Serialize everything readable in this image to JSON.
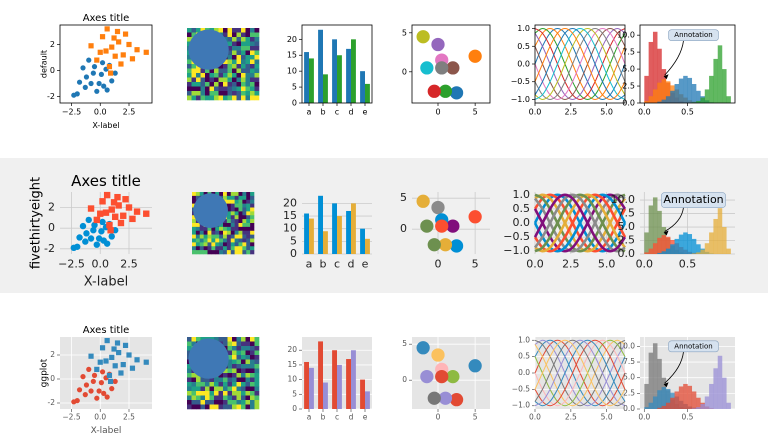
{
  "styles": [
    {
      "name": "default",
      "background": "#ffffff",
      "axes_background": "#ffffff",
      "grid": false,
      "spines": true,
      "ticks": true,
      "text_color": "#000000",
      "colors": [
        "#1f77b4",
        "#ff7f0e",
        "#2ca02c",
        "#d62728",
        "#9467bd",
        "#8c564b",
        "#e377c2",
        "#7f7f7f",
        "#bcbd22",
        "#17becf"
      ]
    },
    {
      "name": "fivethirtyeight",
      "background": "#f0f0f0",
      "axes_background": "#f0f0f0",
      "grid": true,
      "grid_color": "#cbcbcb",
      "spines": false,
      "ticks": false,
      "text_color": "#222222",
      "colors": [
        "#008fd5",
        "#fc4f30",
        "#e5ae38",
        "#6d904f",
        "#8b8b8b",
        "#810f7c"
      ]
    },
    {
      "name": "ggplot",
      "background": "#ffffff",
      "axes_background": "#e5e5e5",
      "grid": true,
      "grid_color": "#ffffff",
      "spines": false,
      "ticks": true,
      "text_color": "#555555",
      "colors": [
        "#e24a33",
        "#348abd",
        "#988ed5",
        "#777777",
        "#fbc15e",
        "#8eba42",
        "#ffb5b8"
      ]
    }
  ],
  "chart_data": [
    {
      "type": "scatter",
      "title": "Axes title",
      "xlabel": "X-label",
      "xlim": [
        -3.5,
        4.5
      ],
      "ylim": [
        -2.5,
        3.5
      ],
      "xticks": [
        {
          "value": -2.5,
          "label": "−2.5"
        },
        {
          "value": 0,
          "label": "0.0"
        },
        {
          "value": 2.5,
          "label": "2.5"
        }
      ],
      "yticks": [
        -2,
        0,
        2
      ],
      "series": [
        {
          "marker": "circle",
          "x": [
            -1.2,
            -0.5,
            0.3,
            -2,
            -0.8,
            0.5,
            -1.5,
            0.1,
            -0.3,
            1,
            -1,
            0.6,
            -1.8,
            0.2,
            -0.6,
            -0.1,
            0.8,
            -1.3,
            1.3,
            -2.3
          ],
          "values": [
            -0.5,
            0.3,
            -1.2,
            -1.8,
            -1,
            0.1,
            0.2,
            -0.3,
            -1.6,
            -0.8,
            0.8,
            -1.5,
            -0.9,
            0.6,
            -0.2,
            -1,
            0.4,
            -1.3,
            -0.2,
            -1.9
          ]
        },
        {
          "marker": "square",
          "x": [
            0.5,
            1.2,
            -0.3,
            2,
            1.5,
            0.8,
            2.5,
            0.2,
            1,
            3.2,
            1.8,
            -0.8,
            0.6,
            2.2,
            1.3,
            0,
            2.8,
            1.6,
            0.9,
            4
          ],
          "values": [
            1.5,
            2.5,
            0.8,
            1.2,
            3,
            0.3,
            2,
            2.6,
            1.8,
            1.6,
            0.5,
            1.9,
            3.2,
            2.8,
            1.1,
            1.4,
            0.9,
            2.2,
            -0.2,
            1.4
          ]
        }
      ]
    },
    {
      "type": "image"
    },
    {
      "type": "bar",
      "categories": [
        "a",
        "b",
        "c",
        "d",
        "e"
      ],
      "ylim": [
        0,
        24.5
      ],
      "yticks": [
        0,
        5,
        10,
        15,
        20
      ],
      "series": [
        {
          "values": [
            16,
            23,
            20,
            17,
            10
          ]
        },
        {
          "values": [
            14,
            9,
            15,
            20,
            6
          ]
        }
      ]
    },
    {
      "type": "circles",
      "xlim": [
        -3.5,
        7
      ],
      "ylim": [
        -4,
        6
      ],
      "xticks": [
        0,
        5
      ],
      "yticks": [
        0,
        5
      ],
      "x": [
        2.5,
        5,
        1,
        -0.5,
        0,
        2,
        0.5,
        0.5,
        -2,
        -1.5
      ],
      "values": [
        -2.7,
        2,
        -2.5,
        -2.5,
        3.5,
        0.5,
        1.5,
        0.5,
        4.5,
        0.5
      ]
    },
    {
      "type": "line",
      "xlim": [
        0,
        6.28
      ],
      "ylim": [
        -1.1,
        1.1
      ],
      "xticks": [
        {
          "value": 0,
          "label": "0.0"
        },
        {
          "value": 2.5,
          "label": "2.5"
        },
        {
          "value": 5,
          "label": "5.0"
        }
      ],
      "yticks": [
        {
          "value": -1,
          "label": "−1.0"
        },
        {
          "value": -0.5,
          "label": "−0.5"
        },
        {
          "value": 0,
          "label": "0.0"
        },
        {
          "value": 0.5,
          "label": "0.5"
        },
        {
          "value": 1,
          "label": "1.0"
        }
      ],
      "x": [
        0,
        0.52,
        1.05,
        1.57,
        2.09,
        2.62,
        3.14,
        3.67,
        4.19,
        4.71,
        5.24,
        5.76,
        6.28
      ],
      "series": [
        {
          "values": [
            0,
            0.5,
            0.87,
            1,
            0.87,
            0.5,
            0,
            -0.5,
            -0.87,
            -1,
            -0.87,
            -0.5,
            0
          ]
        },
        {
          "values": [
            0.5,
            0.87,
            1,
            0.87,
            0.5,
            0,
            -0.5,
            -0.87,
            -1,
            -0.87,
            -0.5,
            0,
            0.5
          ]
        },
        {
          "values": [
            0.87,
            1,
            0.87,
            0.5,
            0,
            -0.5,
            -0.87,
            -1,
            -0.87,
            -0.5,
            0,
            0.5,
            0.87
          ]
        },
        {
          "values": [
            1,
            0.87,
            0.5,
            0,
            -0.5,
            -0.87,
            -1,
            -0.87,
            -0.5,
            0,
            0.5,
            0.87,
            1
          ]
        },
        {
          "values": [
            0.87,
            0.5,
            0,
            -0.5,
            -0.87,
            -1,
            -0.87,
            -0.5,
            0,
            0.5,
            0.87,
            1,
            0.87
          ]
        },
        {
          "values": [
            0.5,
            0,
            -0.5,
            -0.87,
            -1,
            -0.87,
            -0.5,
            0,
            0.5,
            0.87,
            1,
            0.87,
            0.5
          ]
        },
        {
          "values": [
            0,
            -0.5,
            -0.87,
            -1,
            -0.87,
            -0.5,
            0,
            0.5,
            0.87,
            1,
            0.87,
            0.5,
            0
          ]
        },
        {
          "values": [
            -0.5,
            -0.87,
            -1,
            -0.87,
            -0.5,
            0,
            0.5,
            0.87,
            1,
            0.87,
            0.5,
            0,
            -0.5
          ]
        },
        {
          "values": [
            -0.87,
            -1,
            -0.87,
            -0.5,
            0,
            0.5,
            0.87,
            1,
            0.87,
            0.5,
            0,
            -0.5,
            -0.87
          ]
        },
        {
          "values": [
            -1,
            -0.87,
            -0.5,
            0,
            0.5,
            0.87,
            1,
            0.87,
            0.5,
            0,
            -0.5,
            -0.87,
            -1
          ]
        },
        {
          "values": [
            -0.87,
            -0.5,
            0,
            0.5,
            0.87,
            1,
            0.87,
            0.5,
            0,
            -0.5,
            -0.87,
            -1,
            -0.87
          ]
        },
        {
          "values": [
            -0.5,
            0,
            0.5,
            0.87,
            1,
            0.87,
            0.5,
            0,
            -0.5,
            -0.87,
            -1,
            -0.87,
            -0.5
          ]
        }
      ]
    },
    {
      "type": "histogram",
      "annotation": "Annotation",
      "xlim": [
        -0.05,
        1.05
      ],
      "ylim": [
        0,
        11.5
      ],
      "xticks": [
        {
          "value": 0,
          "label": "0.0"
        },
        {
          "value": 0.5,
          "label": "0.5"
        }
      ],
      "yticks": [
        {
          "value": 0,
          "label": "0.0"
        },
        {
          "value": 2.5,
          "label": "2.5"
        },
        {
          "value": 5,
          "label": "5.0"
        },
        {
          "value": 7.5,
          "label": "7.5"
        },
        {
          "value": 10,
          "label": "10.0"
        }
      ],
      "bins": [
        0,
        0.05,
        0.1,
        0.15,
        0.2,
        0.25,
        0.3,
        0.35,
        0.4,
        0.45,
        0.5,
        0.55,
        0.6,
        0.65,
        0.7,
        0.75,
        0.8,
        0.85,
        0.9,
        0.95,
        1
      ],
      "series": [
        {
          "values": [
            4,
            9,
            10.5,
            8,
            5,
            3,
            1.5,
            0.8,
            0.3,
            0.1,
            0,
            0,
            0,
            0,
            0,
            0,
            0,
            0,
            0,
            0
          ]
        },
        {
          "values": [
            0.3,
            1,
            2,
            3,
            3.5,
            3.2,
            2.6,
            2,
            1.3,
            0.8,
            0.4,
            0.2,
            0.1,
            0,
            0,
            0,
            0,
            0,
            0,
            0
          ]
        },
        {
          "values": [
            0,
            0,
            0,
            0.2,
            0.5,
            1,
            1.8,
            2.8,
            3.6,
            4,
            3.7,
            2.8,
            1.8,
            1,
            0.4,
            0.1,
            0,
            0,
            0,
            0
          ]
        },
        {
          "values": [
            0,
            0,
            0,
            0,
            0,
            0,
            0,
            0,
            0,
            0,
            0,
            0.1,
            0.3,
            0.8,
            2,
            4,
            6.5,
            8.5,
            5,
            1
          ]
        }
      ]
    }
  ]
}
